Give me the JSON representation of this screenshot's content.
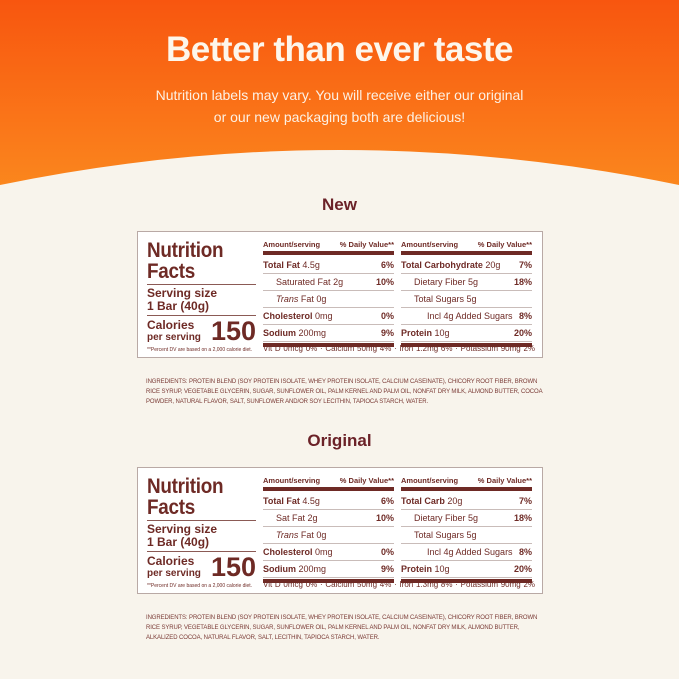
{
  "hero": {
    "title": "Better than ever taste",
    "subtitle_line1": "Nutrition labels may vary. You will receive either our original",
    "subtitle_line2": "or our new packaging both are delicious!"
  },
  "colors": {
    "hero_orange": "#f8560f",
    "brown": "#6e2a25",
    "cream": "#f8f4ec"
  },
  "labels": [
    {
      "section": "New",
      "heading1": "Nutrition",
      "heading2": "Facts",
      "serving_label": "Serving size",
      "serving_value": "1 Bar (40g)",
      "calories_label": "Calories",
      "calories_sub": "per serving",
      "calories": "150",
      "footnote": "**Percent DV are based on a 2,000 calorie diet.",
      "col_header_left": "Amount/serving",
      "col_header_right": "% Daily Value**",
      "left_rows": [
        {
          "name": "Total Fat",
          "amount": "4.5g",
          "dv": "6%",
          "bold": true,
          "indent": 0
        },
        {
          "name": "Saturated Fat",
          "amount": "2g",
          "dv": "10%",
          "bold": false,
          "indent": 1
        },
        {
          "name": "Trans",
          "amount": "Fat 0g",
          "dv": "",
          "bold": false,
          "indent": 1,
          "italic": true
        },
        {
          "name": "Cholesterol",
          "amount": "0mg",
          "dv": "0%",
          "bold": true,
          "indent": 0
        },
        {
          "name": "Sodium",
          "amount": "200mg",
          "dv": "9%",
          "bold": true,
          "indent": 0
        }
      ],
      "right_rows": [
        {
          "name": "Total Carbohydrate",
          "amount": "20g",
          "dv": "7%",
          "bold": true,
          "indent": 0
        },
        {
          "name": "Dietary Fiber",
          "amount": "5g",
          "dv": "18%",
          "bold": false,
          "indent": 1
        },
        {
          "name": "Total Sugars",
          "amount": "5g",
          "dv": "",
          "bold": false,
          "indent": 1
        },
        {
          "name": "Incl 4g Added Sugars",
          "amount": "",
          "dv": "8%",
          "bold": false,
          "indent": 2
        },
        {
          "name": "Protein",
          "amount": "10g",
          "dv": "20%",
          "bold": true,
          "indent": 0
        }
      ],
      "footer": [
        "Vit D 0mcg 0%",
        "·",
        "Calcium 50mg 4%",
        "·",
        "Iron 1.2mg 6%",
        "·",
        "Potassium 90mg 2%"
      ],
      "ingredients": "INGREDIENTS: PROTEIN BLEND (SOY PROTEIN ISOLATE, WHEY PROTEIN ISOLATE, CALCIUM CASEINATE), CHICORY ROOT FIBER, BROWN RICE SYRUP, VEGETABLE GLYCERIN, SUGAR, SUNFLOWER OIL, PALM KERNEL AND PALM OIL, NONFAT DRY MILK, ALMOND BUTTER, COCOA POWDER, NATURAL FLAVOR, SALT, SUNFLOWER AND/OR SOY LECITHIN, TAPIOCA STARCH, WATER."
    },
    {
      "section": "Original",
      "heading1": "Nutrition",
      "heading2": "Facts",
      "serving_label": "Serving size",
      "serving_value": "1 Bar (40g)",
      "calories_label": "Calories",
      "calories_sub": "per serving",
      "calories": "150",
      "footnote": "**Percent DV are based on a 2,000 calorie diet.",
      "col_header_left": "Amount/serving",
      "col_header_right": "% Daily Value**",
      "left_rows": [
        {
          "name": "Total Fat",
          "amount": "4.5g",
          "dv": "6%",
          "bold": true,
          "indent": 0
        },
        {
          "name": "Sat Fat",
          "amount": "2g",
          "dv": "10%",
          "bold": false,
          "indent": 1
        },
        {
          "name": "Trans",
          "amount": "Fat 0g",
          "dv": "",
          "bold": false,
          "indent": 1,
          "italic": true
        },
        {
          "name": "Cholesterol",
          "amount": "0mg",
          "dv": "0%",
          "bold": true,
          "indent": 0
        },
        {
          "name": "Sodium",
          "amount": "200mg",
          "dv": "9%",
          "bold": true,
          "indent": 0
        }
      ],
      "right_rows": [
        {
          "name": "Total Carb",
          "amount": "20g",
          "dv": "7%",
          "bold": true,
          "indent": 0
        },
        {
          "name": "Dietary Fiber",
          "amount": "5g",
          "dv": "18%",
          "bold": false,
          "indent": 1
        },
        {
          "name": "Total Sugars",
          "amount": "5g",
          "dv": "",
          "bold": false,
          "indent": 1
        },
        {
          "name": "Incl 4g Added Sugars",
          "amount": "",
          "dv": "8%",
          "bold": false,
          "indent": 2
        },
        {
          "name": "Protein",
          "amount": "10g",
          "dv": "20%",
          "bold": true,
          "indent": 0
        }
      ],
      "footer": [
        "Vit D 0mcg 0%",
        "·",
        "Calcium 50mg 4%",
        "·",
        "Iron 1.3mg 8%",
        "·",
        "Potassium 90mg 2%"
      ],
      "ingredients": "INGREDIENTS: PROTEIN BLEND (SOY PROTEIN ISOLATE, WHEY PROTEIN ISOLATE, CALCIUM CASEINATE), CHICORY ROOT FIBER, BROWN RICE SYRUP, VEGETABLE GLYCERIN, SUGAR, SUNFLOWER OIL, PALM KERNEL AND PALM OIL, NONFAT DRY MILK, ALMOND BUTTER, ALKALIZED COCOA, NATURAL FLAVOR, SALT, LECITHIN, TAPIOCA STARCH, WATER."
    }
  ]
}
